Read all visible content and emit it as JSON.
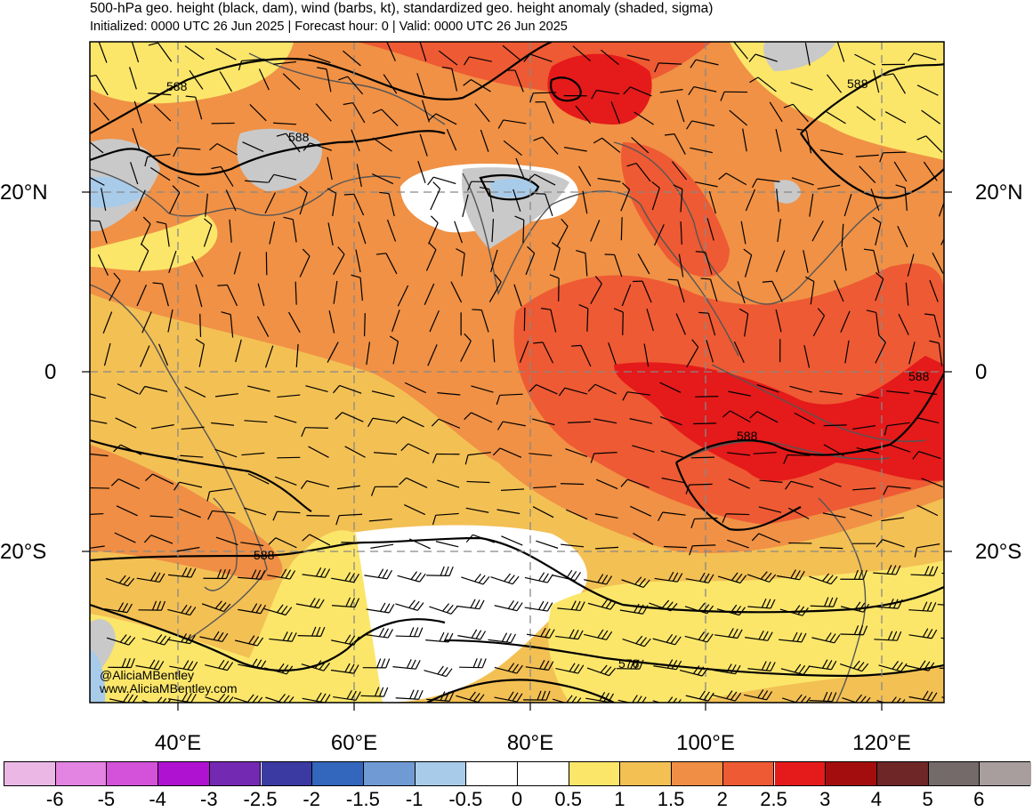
{
  "header": {
    "title": "500-hPa geo. height (black, dam), wind (barbs, kt), standardized geo. height anomaly (shaded, sigma)",
    "subtitle": "Initialized: 0000 UTC 26 Jun 2025 | Forecast hour: 0 | Valid: 0000 UTC 26 Jun 2025"
  },
  "map": {
    "lat_labels_left": [
      "20°N",
      "0",
      "20°S"
    ],
    "lat_labels_right": [
      "20°N",
      "0",
      "20°S"
    ],
    "lon_labels": [
      "40°E",
      "60°E",
      "80°E",
      "100°E",
      "120°E"
    ],
    "contour_labels": [
      "588",
      "588",
      "588",
      "588",
      "588",
      "588",
      "576"
    ],
    "credit": {
      "handle": "@AliciaMBentley",
      "website": "www.AliciaMBentley.com"
    }
  },
  "colorbar": {
    "colors": [
      "#ebb8e6",
      "#e383e2",
      "#d452d9",
      "#b012d2",
      "#7429b3",
      "#3b3aa3",
      "#3366bd",
      "#6f9ad4",
      "#a8cbea",
      "#ffffff",
      "#ffffff",
      "#fbe66a",
      "#f3c054",
      "#ef8e44",
      "#ee5a33",
      "#e51a1a",
      "#a30d0d",
      "#6e2626",
      "#746a6a",
      "#a89e9e"
    ],
    "labels": [
      "-6",
      "-5",
      "-4",
      "-3",
      "-2.5",
      "-2",
      "-1.5",
      "-1",
      "-0.5",
      "0",
      "0.5",
      "1",
      "1.5",
      "2",
      "2.5",
      "3",
      "4",
      "5",
      "6"
    ]
  }
}
